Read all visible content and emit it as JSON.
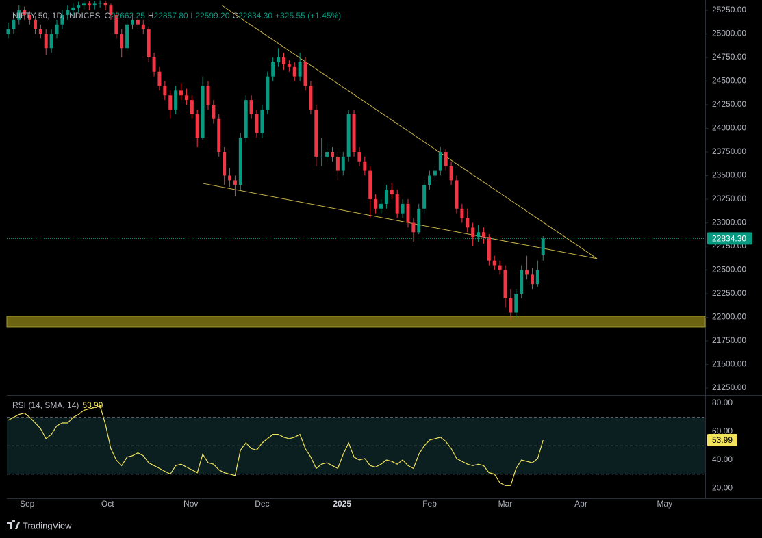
{
  "chart_data": {
    "type": "candlestick",
    "legend": {
      "symbol": "NIFTY 50, 1D, INDICES",
      "o": "O",
      "open": "22662.25",
      "h": "H",
      "high": "22857.80",
      "l": "L",
      "low": "22599.20",
      "c": "C",
      "close": "22834.30",
      "change": "+325.55 (+1.45%)"
    },
    "up_color": "#089981",
    "down_color": "#f23645",
    "ohlc": [
      [
        25000,
        25120,
        24950,
        25050
      ],
      [
        25050,
        25200,
        25000,
        25150
      ],
      [
        25150,
        25300,
        25100,
        25250
      ],
      [
        25250,
        25290,
        25150,
        25200
      ],
      [
        25200,
        25240,
        25100,
        25150
      ],
      [
        25150,
        25190,
        25000,
        25050
      ],
      [
        25050,
        25100,
        24950,
        25000
      ],
      [
        25000,
        25050,
        24780,
        24850
      ],
      [
        24850,
        25050,
        24800,
        25000
      ],
      [
        25000,
        25150,
        24950,
        25100
      ],
      [
        25100,
        25250,
        25050,
        25200
      ],
      [
        25200,
        25300,
        25150,
        25250
      ],
      [
        25250,
        25320,
        25200,
        25280
      ],
      [
        25280,
        25340,
        25230,
        25300
      ],
      [
        25300,
        25350,
        25260,
        25320
      ],
      [
        25320,
        25350,
        25250,
        25300
      ],
      [
        25300,
        25350,
        25260,
        25320
      ],
      [
        25320,
        25355,
        25280,
        25330
      ],
      [
        25330,
        25350,
        25250,
        25300
      ],
      [
        25300,
        25320,
        25150,
        25200
      ],
      [
        25200,
        25240,
        24950,
        25000
      ],
      [
        25000,
        25050,
        24750,
        24850
      ],
      [
        24850,
        25150,
        24820,
        25100
      ],
      [
        25100,
        25220,
        25050,
        25150
      ],
      [
        25150,
        25200,
        25050,
        25100
      ],
      [
        25100,
        25150,
        25000,
        25050
      ],
      [
        25050,
        25080,
        24700,
        24750
      ],
      [
        24750,
        24800,
        24550,
        24600
      ],
      [
        24600,
        24650,
        24400,
        24450
      ],
      [
        24450,
        24500,
        24300,
        24350
      ],
      [
        24350,
        24400,
        24100,
        24200
      ],
      [
        24200,
        24450,
        24150,
        24400
      ],
      [
        24400,
        24480,
        24300,
        24350
      ],
      [
        24350,
        24420,
        24250,
        24300
      ],
      [
        24300,
        24350,
        24100,
        24150
      ],
      [
        24150,
        24200,
        23800,
        23900
      ],
      [
        23900,
        24550,
        23880,
        24450
      ],
      [
        24450,
        24500,
        24200,
        24250
      ],
      [
        24250,
        24300,
        24050,
        24100
      ],
      [
        24100,
        24150,
        23700,
        23750
      ],
      [
        23750,
        23800,
        23400,
        23500
      ],
      [
        23500,
        23580,
        23380,
        23450
      ],
      [
        23450,
        23500,
        23280,
        23400
      ],
      [
        23400,
        23950,
        23350,
        23900
      ],
      [
        23900,
        24350,
        23850,
        24300
      ],
      [
        24300,
        24350,
        24100,
        24150
      ],
      [
        24150,
        24200,
        23900,
        23950
      ],
      [
        23950,
        24250,
        23900,
        24200
      ],
      [
        24200,
        24600,
        24150,
        24550
      ],
      [
        24550,
        24750,
        24500,
        24700
      ],
      [
        24700,
        24850,
        24650,
        24750
      ],
      [
        24750,
        24800,
        24620,
        24680
      ],
      [
        24680,
        24720,
        24600,
        24650
      ],
      [
        24650,
        24700,
        24500,
        24550
      ],
      [
        24550,
        24800,
        24500,
        24700
      ],
      [
        24700,
        24750,
        24400,
        24450
      ],
      [
        24450,
        24500,
        24150,
        24200
      ],
      [
        24200,
        24250,
        23600,
        23700
      ],
      [
        23700,
        23900,
        23600,
        23700
      ],
      [
        23700,
        23850,
        23650,
        23750
      ],
      [
        23750,
        23800,
        23650,
        23700
      ],
      [
        23700,
        23750,
        23450,
        23550
      ],
      [
        23550,
        23750,
        23500,
        23700
      ],
      [
        23700,
        24200,
        23650,
        24150
      ],
      [
        24150,
        24200,
        23700,
        23750
      ],
      [
        23750,
        23800,
        23600,
        23650
      ],
      [
        23650,
        23700,
        23500,
        23550
      ],
      [
        23550,
        23600,
        23050,
        23250
      ],
      [
        23250,
        23300,
        23100,
        23150
      ],
      [
        23150,
        23250,
        23100,
        23200
      ],
      [
        23200,
        23400,
        23150,
        23350
      ],
      [
        23350,
        23420,
        23250,
        23300
      ],
      [
        23300,
        23350,
        23050,
        23100
      ],
      [
        23100,
        23250,
        23050,
        23200
      ],
      [
        23200,
        23250,
        22950,
        23000
      ],
      [
        23000,
        23050,
        22800,
        22900
      ],
      [
        22900,
        23200,
        22880,
        23150
      ],
      [
        23150,
        23450,
        23100,
        23400
      ],
      [
        23400,
        23550,
        23350,
        23500
      ],
      [
        23500,
        23600,
        23450,
        23550
      ],
      [
        23550,
        23800,
        23500,
        23750
      ],
      [
        23750,
        23780,
        23550,
        23600
      ],
      [
        23600,
        23650,
        23400,
        23450
      ],
      [
        23450,
        23500,
        23100,
        23150
      ],
      [
        23150,
        23200,
        23000,
        23050
      ],
      [
        23050,
        23150,
        22900,
        22950
      ],
      [
        22950,
        23000,
        22750,
        22850
      ],
      [
        22850,
        22980,
        22800,
        22900
      ],
      [
        22900,
        22950,
        22780,
        22850
      ],
      [
        22850,
        22880,
        22550,
        22600
      ],
      [
        22600,
        22650,
        22500,
        22550
      ],
      [
        22550,
        22600,
        22450,
        22500
      ],
      [
        22500,
        22550,
        22100,
        22200
      ],
      [
        22200,
        22300,
        21970,
        22050
      ],
      [
        22050,
        22300,
        22000,
        22250
      ],
      [
        22250,
        22550,
        22200,
        22500
      ],
      [
        22500,
        22650,
        22400,
        22450
      ],
      [
        22450,
        22520,
        22300,
        22350
      ],
      [
        22350,
        22600,
        22320,
        22500
      ],
      [
        22662.25,
        22857.8,
        22599.2,
        22834.3
      ]
    ],
    "xlim": [
      0,
      129
    ],
    "xticks": [
      {
        "value": 3.5,
        "label": "Sep"
      },
      {
        "value": 18.4,
        "label": "Oct"
      },
      {
        "value": 33.8,
        "label": "Nov"
      },
      {
        "value": 47,
        "label": "Dec"
      },
      {
        "value": 61.8,
        "label": "2025"
      },
      {
        "value": 78,
        "label": "Feb"
      },
      {
        "value": 92,
        "label": "Mar"
      },
      {
        "value": 106,
        "label": "Apr"
      },
      {
        "value": 121.5,
        "label": "May"
      }
    ],
    "ylim": [
      21177,
      25359
    ],
    "yticks": [
      {
        "value": 21250,
        "label": "21250.00"
      },
      {
        "value": 21500,
        "label": "21500.00"
      },
      {
        "value": 21750,
        "label": "21750.00"
      },
      {
        "value": 22000,
        "label": "22000.00"
      },
      {
        "value": 22250,
        "label": "22250.00"
      },
      {
        "value": 22500,
        "label": "22500.00"
      },
      {
        "value": 22750,
        "label": "22750.00"
      },
      {
        "value": 23000,
        "label": "23000.00"
      },
      {
        "value": 23250,
        "label": "23250.00"
      },
      {
        "value": 23500,
        "label": "23500.00"
      },
      {
        "value": 23750,
        "label": "23750.00"
      },
      {
        "value": 24000,
        "label": "24000.00"
      },
      {
        "value": 24250,
        "label": "24250.00"
      },
      {
        "value": 24500,
        "label": "24500.00"
      },
      {
        "value": 24750,
        "label": "24750.00"
      },
      {
        "value": 25000,
        "label": "25000.00"
      },
      {
        "value": 25250,
        "label": "25250.00"
      }
    ],
    "last_price": {
      "value": 22834.3,
      "label": "22834.30"
    },
    "trendline_color": "#c9b54a",
    "trendlines": [
      {
        "x": [
          39.6,
          109
        ],
        "y": [
          25300,
          22620
        ]
      },
      {
        "x": [
          36,
          109
        ],
        "y": [
          23417,
          22620
        ]
      }
    ],
    "zone": {
      "low": 21895,
      "high": 22011,
      "color": "#6b6310"
    },
    "rsi": {
      "title": "RSI (14, SMA, 14)",
      "color": "#f2e35b",
      "ylim": [
        13,
        85.3
      ],
      "yticks": [
        {
          "value": 20,
          "label": "20.00"
        },
        {
          "value": 40,
          "label": "40.00"
        },
        {
          "value": 60,
          "label": "60.00"
        },
        {
          "value": 80,
          "label": "80.00"
        }
      ],
      "bands": [
        30,
        70
      ],
      "mid": 50,
      "values": [
        68,
        70,
        72,
        73,
        70,
        66,
        62,
        55,
        58,
        64,
        66,
        66,
        70,
        72,
        75,
        76,
        77,
        78,
        65,
        48,
        40,
        36,
        42,
        43,
        45,
        43,
        38,
        36,
        34,
        32,
        30,
        36,
        37,
        35,
        33,
        31,
        44,
        38,
        37,
        33,
        31,
        30,
        29,
        47,
        52,
        48,
        47,
        52,
        55,
        58,
        58,
        56,
        55,
        56,
        58,
        48,
        42,
        34,
        37,
        38,
        36,
        34,
        44,
        52,
        42,
        40,
        41,
        36,
        35,
        37,
        40,
        39,
        37,
        40,
        36,
        34,
        44,
        50,
        54,
        55,
        56,
        53,
        48,
        41,
        39,
        37,
        36,
        37,
        36,
        31,
        30,
        24,
        22,
        22,
        34,
        40,
        39,
        38,
        41,
        53.99
      ]
    },
    "brand": "TradingView"
  }
}
